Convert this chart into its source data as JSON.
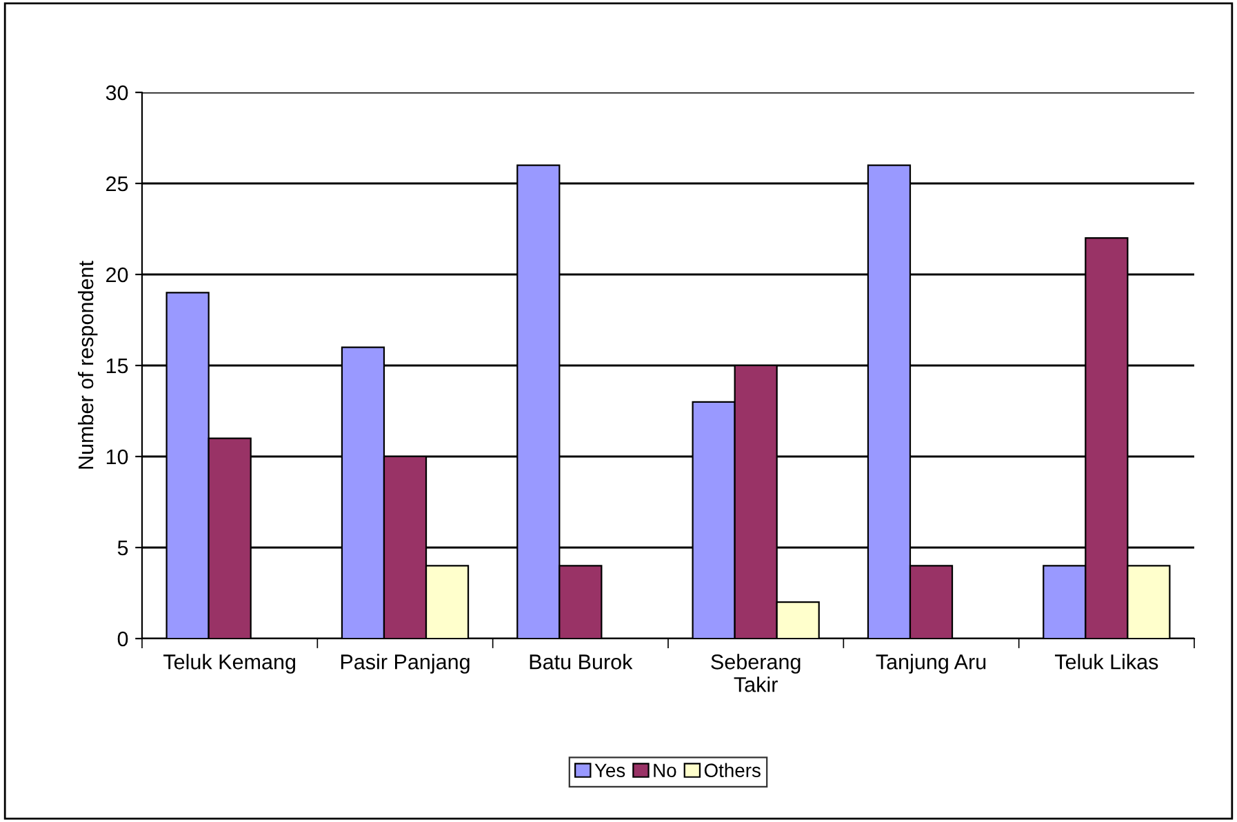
{
  "chart_data": {
    "type": "bar",
    "ylabel": "Number of respondent",
    "categories": [
      "Teluk Kemang",
      "Pasir Panjang",
      "Batu Burok",
      "Seberang\nTakir",
      "Tanjung Aru",
      "Teluk Likas"
    ],
    "series": [
      {
        "name": "Yes",
        "color": "#9999ff",
        "values": [
          19,
          16,
          26,
          13,
          26,
          4
        ]
      },
      {
        "name": "No",
        "color": "#993366",
        "values": [
          11,
          10,
          4,
          15,
          4,
          22
        ]
      },
      {
        "name": "Others",
        "color": "#ffffcc",
        "values": [
          null,
          4,
          null,
          2,
          null,
          4
        ]
      }
    ],
    "ylim": [
      0,
      30
    ],
    "yticks": [
      0,
      5,
      10,
      15,
      20,
      25,
      30
    ],
    "grid": "y",
    "legend": "bottom"
  }
}
